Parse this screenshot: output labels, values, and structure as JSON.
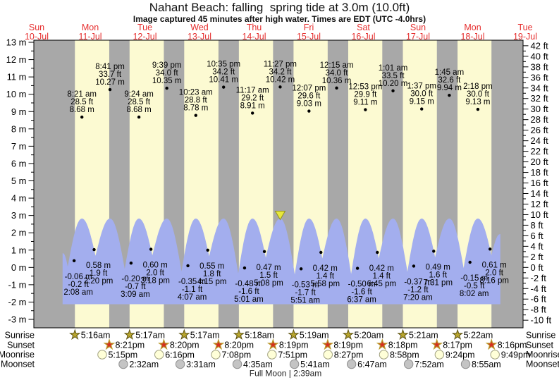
{
  "title": "Nahant Beach: falling  spring tide at 3.0m (10.0ft)",
  "subtitle": "Image captured 45 minutes after high water. Times are EDT (UTC -4.0hrs)",
  "colors": {
    "day_band": "#fcfad2",
    "night_band": "#a8a8a8",
    "tide_fill": "#a3aeee",
    "day_label": "#e62e2e",
    "marker_fill": "#e8e83c",
    "marker_stroke": "#93931d",
    "sunrise_star_fill": "#b9a62e",
    "sunrise_star_stroke": "#5d5310",
    "sunset_star_fill": "#d53020",
    "sunset_star_stroke": "#b89b2a",
    "moonrise_fill": "#ffffd8",
    "moonrise_stroke": "#a0a080",
    "moonset_fill": "#c4c4c4",
    "moonset_stroke": "#8f8f8f"
  },
  "chart_data": {
    "type": "area",
    "title": "Nahant Beach: falling  spring tide at 3.0m (10.0ft)",
    "x_days": [
      {
        "dow": "Sun",
        "date": "10-Jul"
      },
      {
        "dow": "Mon",
        "date": "11-Jul"
      },
      {
        "dow": "Tue",
        "date": "12-Jul"
      },
      {
        "dow": "Wed",
        "date": "13-Jul"
      },
      {
        "dow": "Thu",
        "date": "14-Jul"
      },
      {
        "dow": "Fri",
        "date": "15-Jul"
      },
      {
        "dow": "Sat",
        "date": "16-Jul"
      },
      {
        "dow": "Sun",
        "date": "17-Jul"
      },
      {
        "dow": "Mon",
        "date": "18-Jul"
      },
      {
        "dow": "Tue",
        "date": "19-Jul"
      }
    ],
    "y_left": {
      "unit": "m",
      "min": -3,
      "max": 13,
      "label_step": 1
    },
    "y_right": {
      "unit": "ft",
      "min": -10,
      "max": 42,
      "label_step": 2
    },
    "high_tides": [
      {
        "day": 0,
        "time": "8:21 am",
        "ft": "28.5 ft",
        "m": "8.68 m",
        "m_value": 8.68
      },
      {
        "day": 0,
        "time": "8:41 pm",
        "ft": "33.7 ft",
        "m": "10.27 m",
        "m_value": 10.27
      },
      {
        "day": 1,
        "time": "9:24 am",
        "ft": "28.5 ft",
        "m": "8.68 m",
        "m_value": 8.68
      },
      {
        "day": 1,
        "time": "9:39 pm",
        "ft": "34.0 ft",
        "m": "10.35 m",
        "m_value": 10.35
      },
      {
        "day": 2,
        "time": "10:23 am",
        "ft": "28.8 ft",
        "m": "8.78 m",
        "m_value": 8.78
      },
      {
        "day": 2,
        "time": "10:35 pm",
        "ft": "34.2 ft",
        "m": "10.41 m",
        "m_value": 10.41
      },
      {
        "day": 3,
        "time": "11:17 am",
        "ft": "29.2 ft",
        "m": "8.91 m",
        "m_value": 8.91
      },
      {
        "day": 3,
        "time": "11:27 pm",
        "ft": "34.2 ft",
        "m": "10.42 m",
        "m_value": 10.42
      },
      {
        "day": 4,
        "time": "12:07 pm",
        "ft": "29.6 ft",
        "m": "9.03 m",
        "m_value": 9.03
      },
      {
        "day": 5,
        "time": "12:15 am",
        "ft": "34.0 ft",
        "m": "10.36 m",
        "m_value": 10.36
      },
      {
        "day": 5,
        "time": "12:53 pm",
        "ft": "29.9 ft",
        "m": "9.11 m",
        "m_value": 9.11
      },
      {
        "day": 6,
        "time": "1:01 am",
        "ft": "33.5 ft",
        "m": "10.20 m",
        "m_value": 10.2
      },
      {
        "day": 6,
        "time": "1:37 pm",
        "ft": "30.0 ft",
        "m": "9.15 m",
        "m_value": 9.15
      },
      {
        "day": 7,
        "time": "1:45 am",
        "ft": "32.6 ft",
        "m": "9.94 m",
        "m_value": 9.94
      },
      {
        "day": 7,
        "time": "2:18 pm",
        "ft": "30.0 ft",
        "m": "9.13 m",
        "m_value": 9.13
      }
    ],
    "low_tides": [
      {
        "day": 0,
        "time": "2:08 am",
        "ft": "-0.2 ft",
        "m": "-0.06 m",
        "m_value": -0.06
      },
      {
        "day": 0,
        "time": "2:20 pm",
        "ft": "1.9 ft",
        "m": "0.58 m",
        "m_value": 0.58
      },
      {
        "day": 1,
        "time": "3:09 am",
        "ft": "-0.7 ft",
        "m": "-0.20 m",
        "m_value": -0.2
      },
      {
        "day": 1,
        "time": "3:18 pm",
        "ft": "2.0 ft",
        "m": "0.60 m",
        "m_value": 0.6
      },
      {
        "day": 2,
        "time": "4:07 am",
        "ft": "-1.1 ft",
        "m": "-0.35 m",
        "m_value": -0.35
      },
      {
        "day": 2,
        "time": "4:15 pm",
        "ft": "1.8 ft",
        "m": "0.55 m",
        "m_value": 0.55
      },
      {
        "day": 3,
        "time": "5:01 am",
        "ft": "-1.6 ft",
        "m": "-0.48 m",
        "m_value": -0.48
      },
      {
        "day": 3,
        "time": "5:08 pm",
        "ft": "1.5 ft",
        "m": "0.47 m",
        "m_value": 0.47
      },
      {
        "day": 4,
        "time": "5:51 am",
        "ft": "-1.7 ft",
        "m": "-0.53 m",
        "m_value": -0.53
      },
      {
        "day": 4,
        "time": "5:58 pm",
        "ft": "1.4 ft",
        "m": "0.42 m",
        "m_value": 0.42
      },
      {
        "day": 5,
        "time": "6:37 am",
        "ft": "-1.6 ft",
        "m": "-0.50 m",
        "m_value": -0.5
      },
      {
        "day": 5,
        "time": "6:45 pm",
        "ft": "1.4 ft",
        "m": "0.42 m",
        "m_value": 0.42
      },
      {
        "day": 6,
        "time": "7:20 am",
        "ft": "-1.2 ft",
        "m": "-0.37 m",
        "m_value": -0.37
      },
      {
        "day": 6,
        "time": "7:31 pm",
        "ft": "1.6 ft",
        "m": "0.49 m",
        "m_value": 0.49
      },
      {
        "day": 7,
        "time": "8:02 am",
        "ft": "-0.5 ft",
        "m": "-0.15 m",
        "m_value": -0.15
      },
      {
        "day": 7,
        "time": "8:16 pm",
        "ft": "2.0 ft",
        "m": "0.61 m",
        "m_value": 0.61
      }
    ],
    "marker_high_index": 7
  },
  "astro": {
    "row_labels": [
      "Sunrise",
      "Sunset",
      "Moonrise",
      "Moonset"
    ],
    "sunrise": [
      "5:16am",
      "5:17am",
      "5:17am",
      "5:18am",
      "5:19am",
      "5:20am",
      "5:21am",
      "5:22am"
    ],
    "sunset": [
      "8:21pm",
      "8:20pm",
      "8:20pm",
      "8:19pm",
      "8:19pm",
      "8:18pm",
      "8:17pm",
      "8:16pm"
    ],
    "moonrise": [
      "5:15pm",
      "6:16pm",
      "7:08pm",
      "7:51pm",
      "8:27pm",
      "8:58pm",
      "9:24pm",
      "9:49pm"
    ],
    "moonset": [
      "2:32am",
      "3:31am",
      "4:35am",
      "5:41am",
      "6:47am",
      "7:52am",
      "8:55am"
    ],
    "footer": "Full Moon | 2:39am"
  }
}
